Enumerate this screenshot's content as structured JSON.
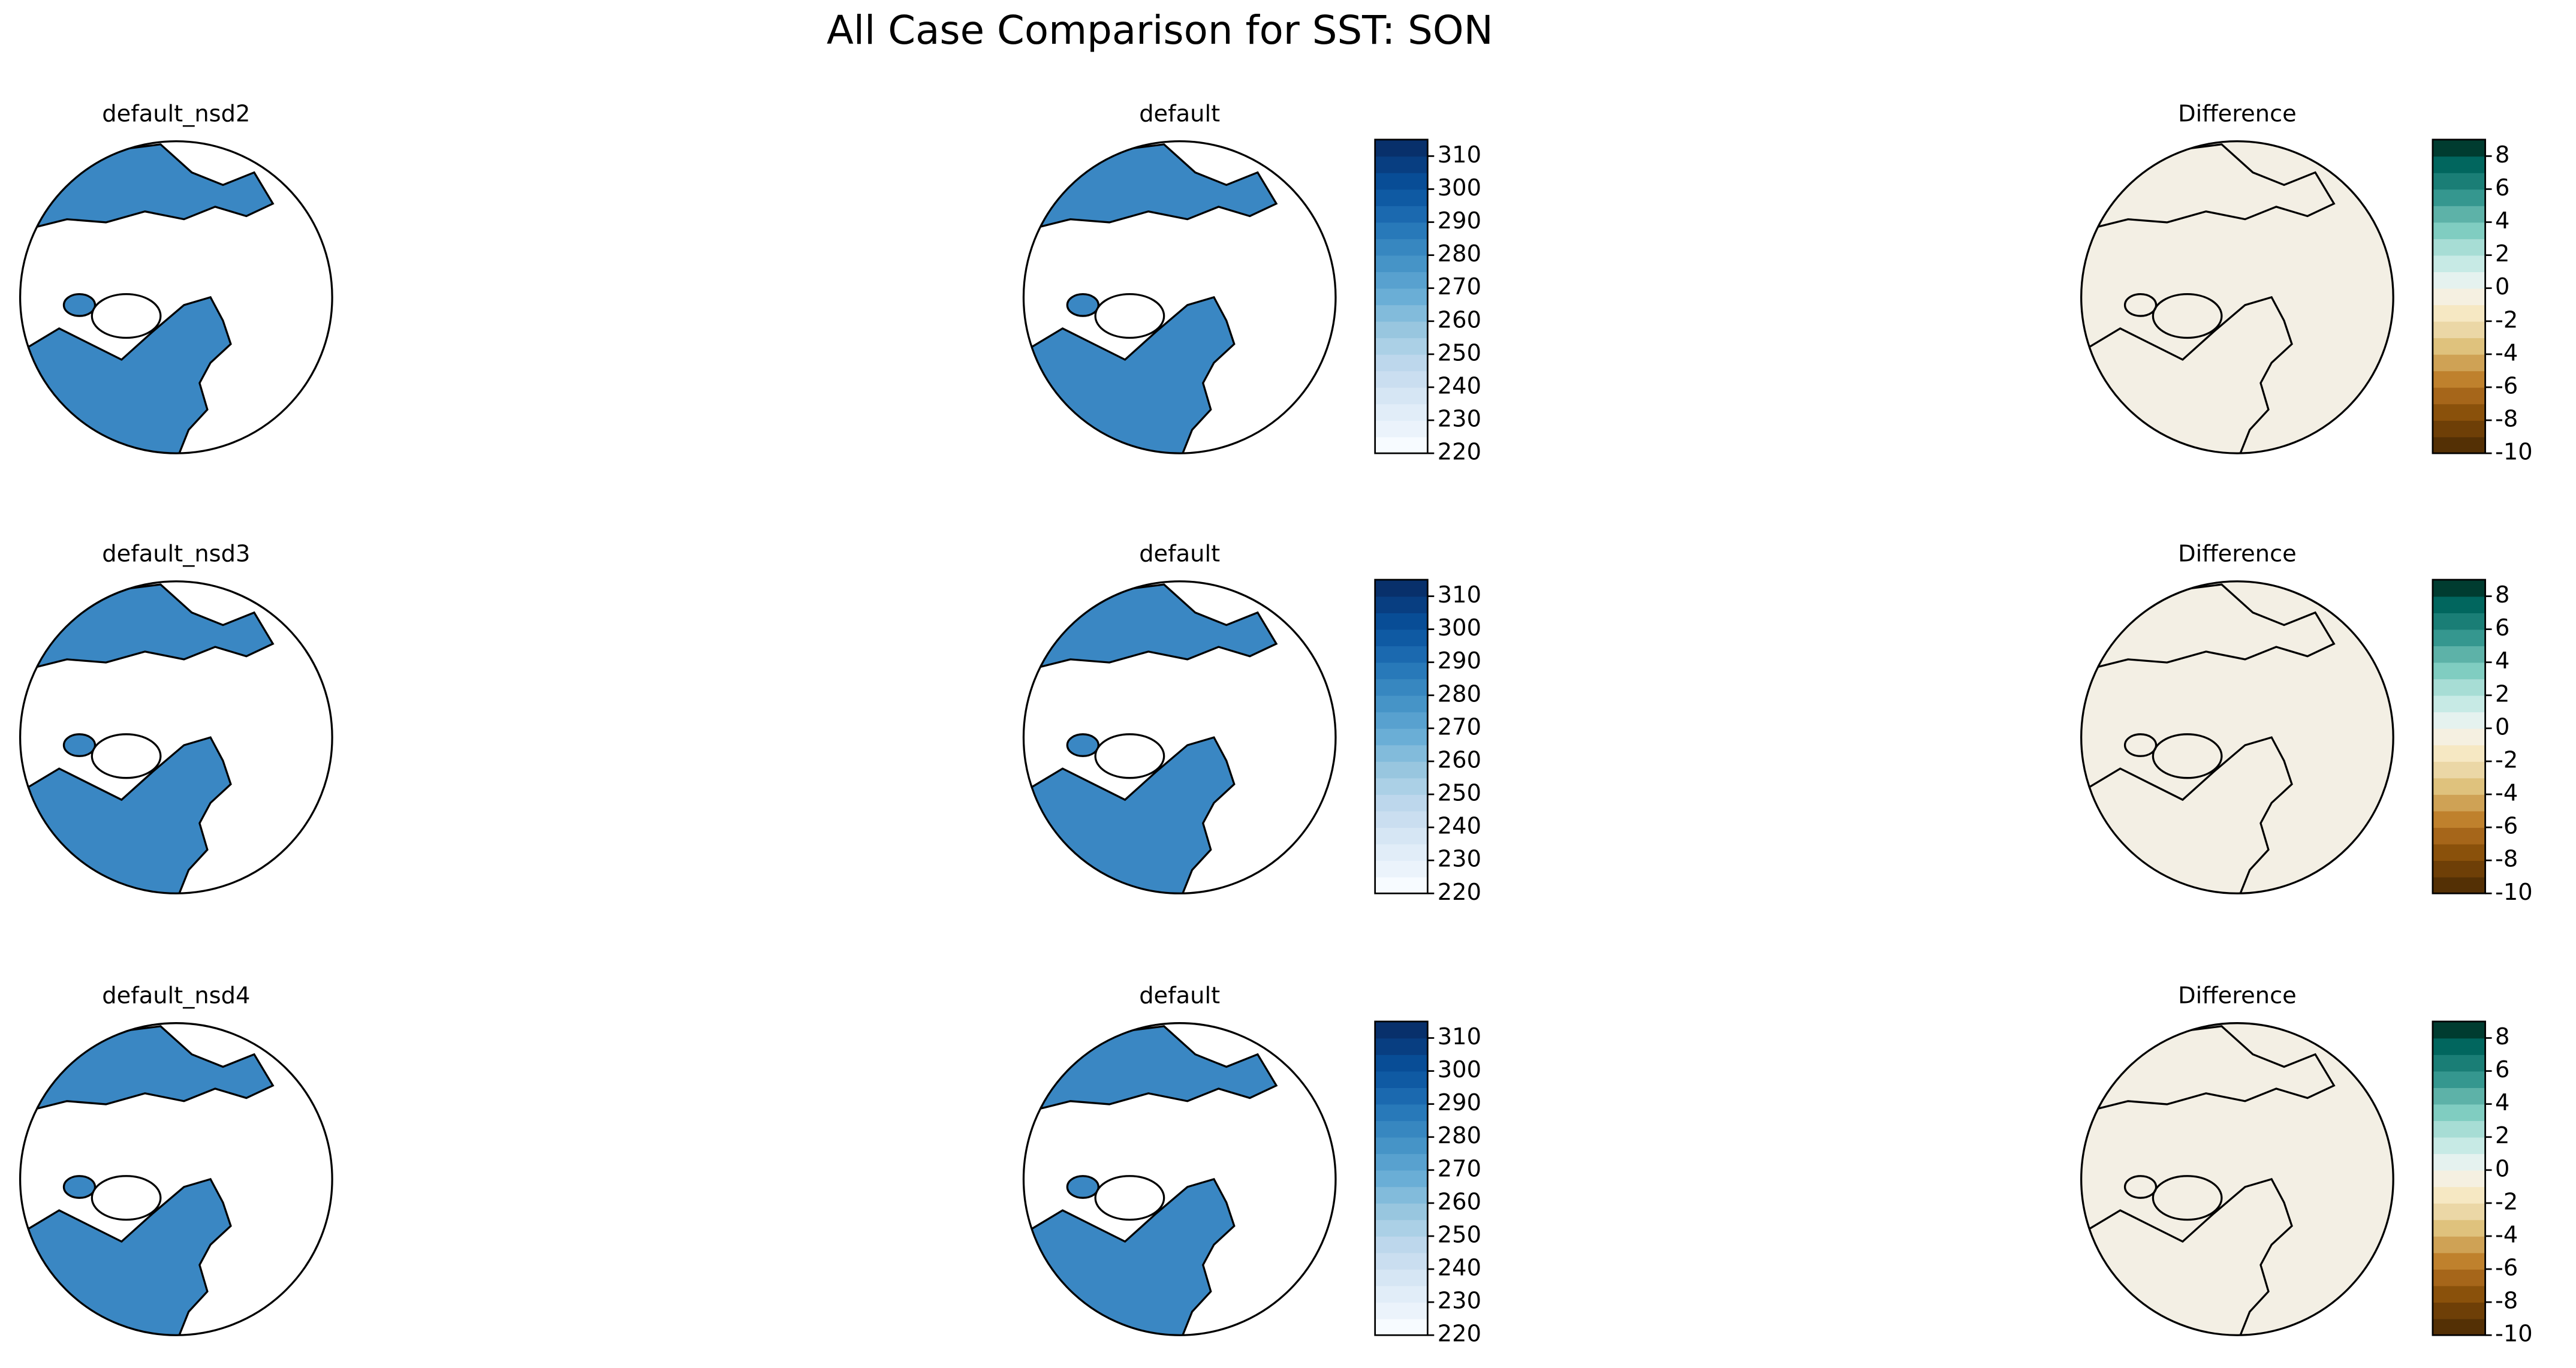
{
  "title": "All Case Comparison for SST: SON",
  "chart_data": [
    {
      "type": "map",
      "title": "default_nsd2"
    },
    {
      "type": "map",
      "title": "default",
      "colorbar": {
        "ylim": [
          220,
          315
        ],
        "yticks": [
          220,
          230,
          240,
          250,
          260,
          270,
          280,
          290,
          300,
          310
        ],
        "colors": [
          "#f7fbff",
          "#ebf3fb",
          "#e1edf8",
          "#d6e6f4",
          "#cadef0",
          "#bdd7ec",
          "#abd0e6",
          "#98c6df",
          "#82bbdb",
          "#6aaed6",
          "#58a1cf",
          "#4694c7",
          "#3787c0",
          "#2879b9",
          "#1b69af",
          "#0f5aa3",
          "#084d96",
          "#083e81",
          "#08306b"
        ]
      }
    },
    {
      "type": "map",
      "title": "Difference",
      "colorbar": {
        "ylim": [
          -10,
          9
        ],
        "yticks": [
          -10,
          -8,
          -6,
          -4,
          -2,
          0,
          2,
          4,
          6,
          8
        ],
        "colors": [
          "#543005",
          "#6e3f07",
          "#8a510b",
          "#a6661a",
          "#bf812d",
          "#cfa255",
          "#dfc27d",
          "#ebd7a6",
          "#f6e8c3",
          "#f5f0e1",
          "#e5f2ef",
          "#c7eae5",
          "#a7ddd5",
          "#80cdc1",
          "#5db2a8",
          "#35978f",
          "#1a7e76",
          "#01665e",
          "#003c30"
        ]
      }
    },
    {
      "type": "map",
      "title": "default_nsd3"
    },
    {
      "type": "map",
      "title": "default",
      "colorbar": {
        "ylim": [
          220,
          315
        ],
        "yticks": [
          220,
          230,
          240,
          250,
          260,
          270,
          280,
          290,
          300,
          310
        ],
        "colors": [
          "#f7fbff",
          "#ebf3fb",
          "#e1edf8",
          "#d6e6f4",
          "#cadef0",
          "#bdd7ec",
          "#abd0e6",
          "#98c6df",
          "#82bbdb",
          "#6aaed6",
          "#58a1cf",
          "#4694c7",
          "#3787c0",
          "#2879b9",
          "#1b69af",
          "#0f5aa3",
          "#084d96",
          "#083e81",
          "#08306b"
        ]
      }
    },
    {
      "type": "map",
      "title": "Difference",
      "colorbar": {
        "ylim": [
          -10,
          9
        ],
        "yticks": [
          -10,
          -8,
          -6,
          -4,
          -2,
          0,
          2,
          4,
          6,
          8
        ],
        "colors": [
          "#543005",
          "#6e3f07",
          "#8a510b",
          "#a6661a",
          "#bf812d",
          "#cfa255",
          "#dfc27d",
          "#ebd7a6",
          "#f6e8c3",
          "#f5f0e1",
          "#e5f2ef",
          "#c7eae5",
          "#a7ddd5",
          "#80cdc1",
          "#5db2a8",
          "#35978f",
          "#1a7e76",
          "#01665e",
          "#003c30"
        ]
      }
    },
    {
      "type": "map",
      "title": "default_nsd4"
    },
    {
      "type": "map",
      "title": "default",
      "colorbar": {
        "ylim": [
          220,
          315
        ],
        "yticks": [
          220,
          230,
          240,
          250,
          260,
          270,
          280,
          290,
          300,
          310
        ],
        "colors": [
          "#f7fbff",
          "#ebf3fb",
          "#e1edf8",
          "#d6e6f4",
          "#cadef0",
          "#bdd7ec",
          "#abd0e6",
          "#98c6df",
          "#82bbdb",
          "#6aaed6",
          "#58a1cf",
          "#4694c7",
          "#3787c0",
          "#2879b9",
          "#1b69af",
          "#0f5aa3",
          "#084d96",
          "#083e81",
          "#08306b"
        ]
      }
    },
    {
      "type": "map",
      "title": "Difference",
      "colorbar": {
        "ylim": [
          -10,
          9
        ],
        "yticks": [
          -10,
          -8,
          -6,
          -4,
          -2,
          0,
          2,
          4,
          6,
          8
        ],
        "colors": [
          "#543005",
          "#6e3f07",
          "#8a510b",
          "#a6661a",
          "#bf812d",
          "#cfa255",
          "#dfc27d",
          "#ebd7a6",
          "#f6e8c3",
          "#f5f0e1",
          "#e5f2ef",
          "#c7eae5",
          "#a7ddd5",
          "#80cdc1",
          "#5db2a8",
          "#35978f",
          "#1a7e76",
          "#01665e",
          "#003c30"
        ]
      }
    }
  ]
}
